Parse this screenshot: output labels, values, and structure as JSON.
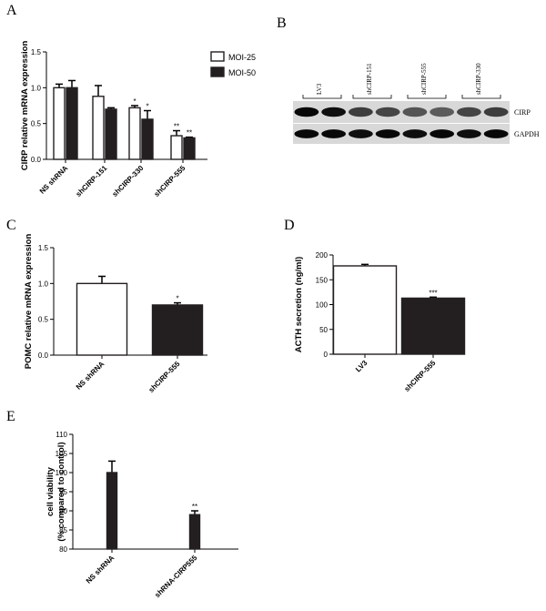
{
  "panels": {
    "A": "A",
    "B": "B",
    "C": "C",
    "D": "D",
    "E": "E"
  },
  "chart_data": [
    {
      "panel": "A",
      "type": "bar",
      "ylabel": "CIRP relative mRNA expression",
      "ylim": [
        0,
        1.5
      ],
      "yticks": [
        "0.0",
        "0.5",
        "1.0",
        "1.5"
      ],
      "categories": [
        "NS shRNA",
        "shCIRP-151",
        "shCIRP-330",
        "shCIRP-555"
      ],
      "series": [
        {
          "name": "MOI-25",
          "fill": "#ffffff",
          "values": [
            1.0,
            0.88,
            0.72,
            0.33
          ],
          "errors": [
            0.05,
            0.15,
            0.03,
            0.07
          ],
          "sig": [
            "",
            "",
            "*",
            "**"
          ]
        },
        {
          "name": "MOI-50",
          "fill": "#231f20",
          "values": [
            1.0,
            0.7,
            0.56,
            0.3
          ],
          "errors": [
            0.1,
            0.02,
            0.12,
            0.01
          ],
          "sig": [
            "",
            "",
            "*",
            "**"
          ]
        }
      ],
      "legend": "top-right"
    },
    {
      "panel": "C",
      "type": "bar",
      "ylabel": "POMC relative mRNA expression",
      "ylim": [
        0,
        1.5
      ],
      "yticks": [
        "0.0",
        "0.5",
        "1.0",
        "1.5"
      ],
      "categories": [
        "NS shRNA",
        "shCIRP-555"
      ],
      "values": [
        1.0,
        0.7
      ],
      "errors": [
        0.1,
        0.03
      ],
      "fills": [
        "#ffffff",
        "#231f20"
      ],
      "sig": [
        "",
        "*"
      ]
    },
    {
      "panel": "D",
      "type": "bar",
      "ylabel": "ACTH secretion (ng/ml)",
      "ylim": [
        0,
        200
      ],
      "yticks": [
        "0",
        "50",
        "100",
        "150",
        "200"
      ],
      "categories": [
        "LV3",
        "shCIRP-555"
      ],
      "values": [
        178,
        113
      ],
      "errors": [
        3,
        2
      ],
      "fills": [
        "#ffffff",
        "#231f20"
      ],
      "sig": [
        "",
        "***"
      ]
    },
    {
      "panel": "E",
      "type": "bar",
      "ylabel": [
        "cell viability",
        "(% compared to control)"
      ],
      "ylim": [
        80,
        110
      ],
      "yticks": [
        "80",
        "85",
        "90",
        "95",
        "100",
        "105",
        "110"
      ],
      "categories": [
        "NS shRNA",
        "shRNA-CIRP555"
      ],
      "values": [
        100,
        89
      ],
      "errors": [
        3,
        1
      ],
      "fills": [
        "#231f20",
        "#231f20"
      ],
      "sig": [
        "",
        "**"
      ]
    }
  ],
  "blot": {
    "lanes": [
      "LV3",
      "shCIRP-151",
      "shCIRP-555",
      "shCIRP-330"
    ],
    "rows": [
      "CIRP",
      "GAPDH"
    ]
  }
}
